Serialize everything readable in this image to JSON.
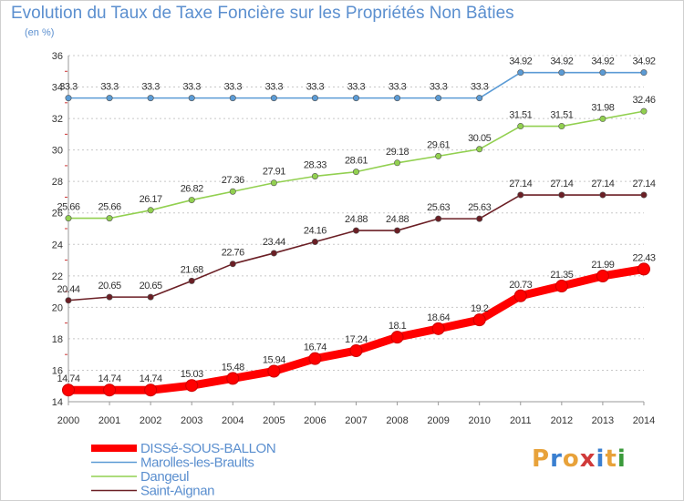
{
  "header": {
    "title": "Evolution du Taux de Taxe Foncière sur les Propriétés Non Bâties",
    "subtitle": "(en %)"
  },
  "logo": {
    "text": "Proxiti",
    "colors": [
      "#e8a23a",
      "#3a7fd0",
      "#e8a23a",
      "#d03a3a",
      "#3a7fd0",
      "#e8a23a",
      "#3a9a3a"
    ]
  },
  "chart_data": {
    "type": "line",
    "title": "Evolution du Taux de Taxe Foncière sur les Propriétés Non Bâties",
    "ylabel": "(en %)",
    "xlabel": "",
    "x": [
      2000,
      2001,
      2002,
      2003,
      2004,
      2005,
      2006,
      2007,
      2008,
      2009,
      2010,
      2011,
      2012,
      2013,
      2014
    ],
    "ylim": [
      14,
      36
    ],
    "yticks": [
      14,
      16,
      18,
      20,
      22,
      24,
      26,
      28,
      30,
      32,
      34,
      36
    ],
    "grid": "horizontal dashed",
    "legend_position": "bottom-left",
    "series": [
      {
        "name": "DISSé-SOUS-BALLON",
        "color": "#ff0000",
        "emphasis": true,
        "values": [
          14.74,
          14.74,
          14.74,
          15.03,
          15.48,
          15.94,
          16.74,
          17.24,
          18.1,
          18.64,
          19.2,
          20.73,
          21.35,
          21.99,
          22.43
        ],
        "labels": [
          "14.74",
          "14.74",
          "14.74",
          "15.03",
          "15.48",
          "15.94",
          "16.74",
          "17.24",
          "18.1",
          "18.64",
          "19.2",
          "20.73",
          "21.35",
          "21.99",
          "22.43"
        ]
      },
      {
        "name": "Marolles-les-Braults",
        "color": "#5b9bd5",
        "values": [
          33.3,
          33.3,
          33.3,
          33.3,
          33.3,
          33.3,
          33.3,
          33.3,
          33.3,
          33.3,
          33.3,
          34.92,
          34.92,
          34.92,
          34.92
        ],
        "labels": [
          "33.3",
          "33.3",
          "33.3",
          "33.3",
          "33.3",
          "33.3",
          "33.3",
          "33.3",
          "33.3",
          "33.3",
          "33.3",
          "34.92",
          "34.92",
          "34.92",
          "34.92"
        ]
      },
      {
        "name": "Dangeul",
        "color": "#92d050",
        "values": [
          25.66,
          25.66,
          26.17,
          26.82,
          27.36,
          27.91,
          28.33,
          28.61,
          29.18,
          29.61,
          30.05,
          31.51,
          31.51,
          31.98,
          32.46
        ],
        "labels": [
          "25.66",
          "25.66",
          "26.17",
          "26.82",
          "27.36",
          "27.91",
          "28.33",
          "28.61",
          "29.18",
          "29.61",
          "30.05",
          "31.51",
          "31.51",
          "31.98",
          "32.46"
        ]
      },
      {
        "name": "Saint-Aignan",
        "color": "#6b1f25",
        "values": [
          20.44,
          20.65,
          20.65,
          21.68,
          22.76,
          23.44,
          24.16,
          24.88,
          24.88,
          25.63,
          25.63,
          27.14,
          27.14,
          27.14,
          27.14
        ],
        "labels": [
          "20.44",
          "20.65",
          "20.65",
          "21.68",
          "22.76",
          "23.44",
          "24.16",
          "24.88",
          "24.88",
          "25.63",
          "25.63",
          "27.14",
          "27.14",
          "27.14",
          "27.14"
        ]
      }
    ]
  }
}
